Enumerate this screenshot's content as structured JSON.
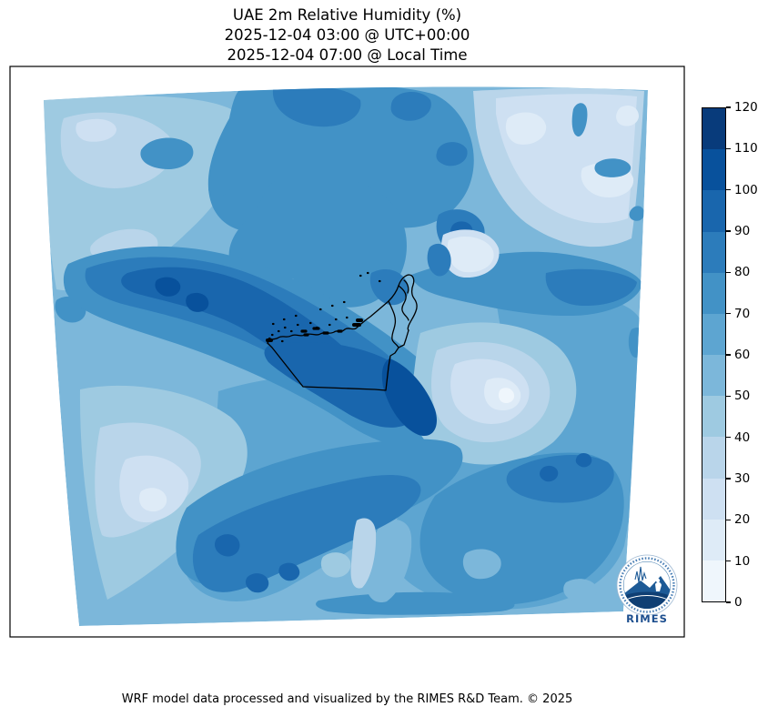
{
  "figure": {
    "title_line1": "UAE 2m Relative Humidity (%)",
    "title_line2": "2025-12-04 03:00 @ UTC+00:00",
    "title_line3": "2025-12-04 07:00 @ Local Time",
    "footer_credit": "WRF model data processed and visualized by the RIMES R&D Team. © 2025"
  },
  "logo": {
    "label": "RIMES"
  },
  "colors": {
    "background": "#ffffff",
    "frame": "#000000",
    "map_outline": "#000000",
    "logo_blue": "#1d4f8f",
    "levels": [
      "#eff6fc",
      "#deebf7",
      "#cee0f2",
      "#b9d5ea",
      "#9ecae1",
      "#7cb7da",
      "#5da5d1",
      "#4292c6",
      "#2c7cbb",
      "#1966ad",
      "#08519c",
      "#083b7b"
    ]
  },
  "chart_data": {
    "type": "heatmap",
    "title": "UAE 2m Relative Humidity (%)",
    "valid_time_utc": "2025-12-04 03:00 @ UTC+00:00",
    "valid_time_local": "2025-12-04 07:00 @ Local Time",
    "variable": "2m Relative Humidity",
    "units": "%",
    "model": "WRF",
    "region": "UAE and surrounding Arabian Gulf / Gulf of Oman",
    "colormap": "Blues",
    "legend_position": "right",
    "colorbar_ticks": [
      0,
      10,
      20,
      30,
      40,
      50,
      60,
      70,
      80,
      90,
      100,
      110,
      120
    ],
    "colorbar_range": [
      0,
      120
    ],
    "contour_interval": 10,
    "overlay": "UAE coastline, islands and national border drawn in black",
    "approx_region_values_percent": [
      {
        "region": "northwest quadrant",
        "range": "40-60"
      },
      {
        "region": "north-central band",
        "range": "70-90"
      },
      {
        "region": "top-right / northeast corner",
        "range": "20-40"
      },
      {
        "region": "west-central band",
        "range": "90-110"
      },
      {
        "region": "Arabian Gulf coast and UAE interior (center)",
        "range": "90-110"
      },
      {
        "region": "east of UAE border toward Oman (center-right)",
        "range": "10-40"
      },
      {
        "region": "southwest (bottom-left)",
        "range": "20-50"
      },
      {
        "region": "south-central diagonal band",
        "range": "80-100"
      },
      {
        "region": "southeast quadrant",
        "range": "60-90"
      }
    ]
  }
}
